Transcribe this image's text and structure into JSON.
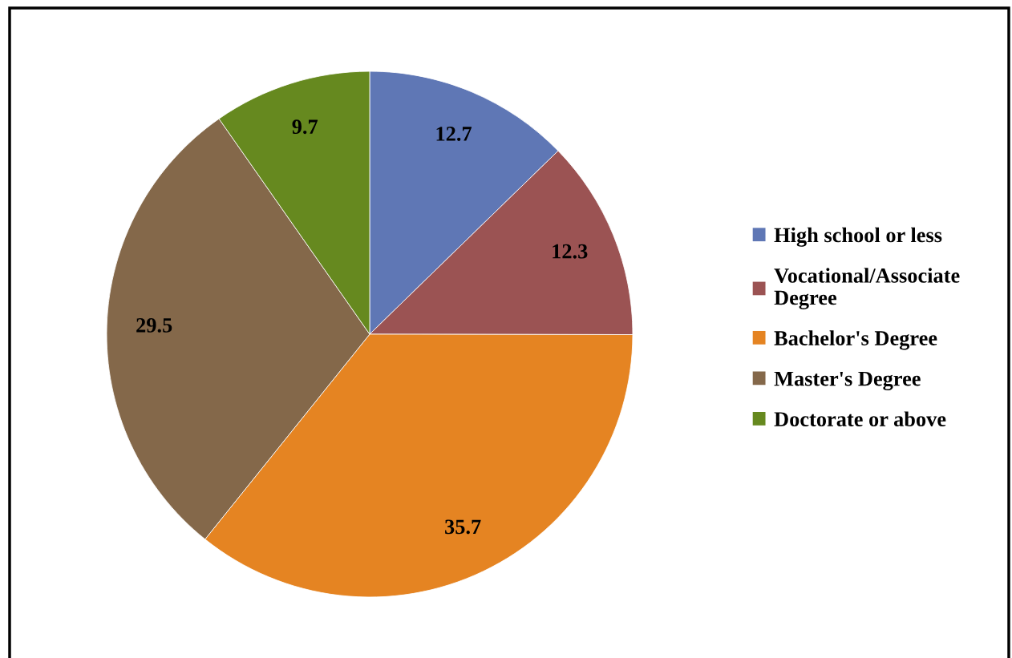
{
  "chart_data": {
    "type": "pie",
    "categories": [
      "High school or less",
      "Vocational/Associate Degree",
      "Bachelor's Degree",
      "Master's Degree",
      "Doctorate or above"
    ],
    "values": [
      12.7,
      12.3,
      35.7,
      29.5,
      9.7
    ],
    "colors": [
      "#5f77b5",
      "#9b5353",
      "#e58422",
      "#84684a",
      "#66891f"
    ],
    "data_labels": true,
    "legend": "right"
  }
}
